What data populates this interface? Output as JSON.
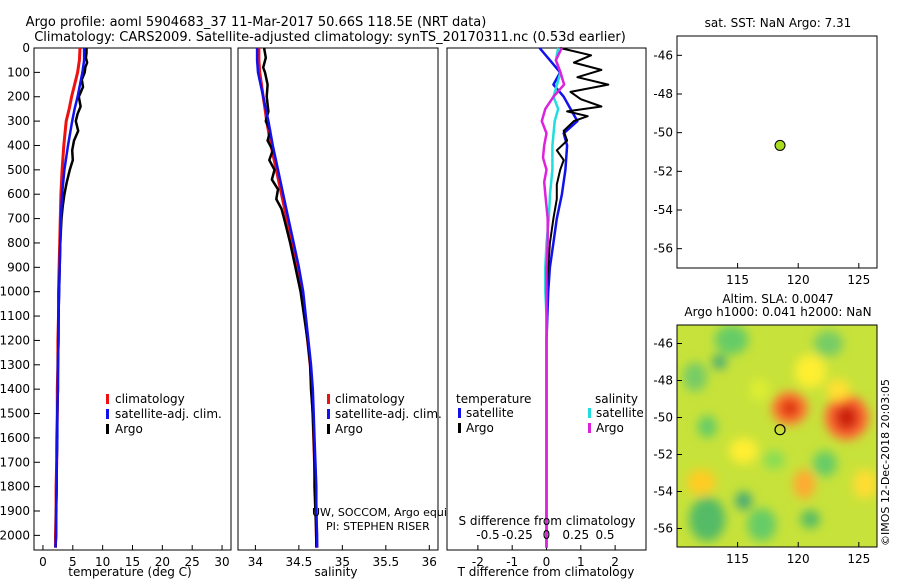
{
  "title": {
    "line1": "Argo profile: aoml 5904683_37 11-Mar-2017 50.66S 118.5E (NRT data)",
    "line2": "Climatology: CARS2009. Satellite-adjusted climatology: synTS_20170311.nc (0.53d earlier)"
  },
  "depth_axis": {
    "ticks": [
      "0",
      "100",
      "200",
      "300",
      "400",
      "500",
      "600",
      "700",
      "800",
      "900",
      "1000",
      "1100",
      "1200",
      "1300",
      "1400",
      "1500",
      "1600",
      "1700",
      "1800",
      "1900",
      "2000"
    ]
  },
  "colors": {
    "climatology": "#ee1111",
    "satellite": "#1111ee",
    "argo": "#000000",
    "sat_salinity": "#22dddd",
    "argo_salinity": "#dd22dd",
    "sst_marker": "#aadd22"
  },
  "legends": {
    "climatology": "climatology",
    "satellite_adj": "satellite-adj. clim.",
    "argo": "Argo",
    "diff_temperature": "temperature",
    "diff_salinity": "salinity",
    "satellite": "satellite"
  },
  "credit": {
    "line1": "UW, SOCCOM, Argo equivalent",
    "line2": "PI: STEPHEN RISER"
  },
  "map_labels": {
    "sst_title": "sat. SST: NaN Argo: 7.31",
    "sla_title1": "Altim. SLA: 0.0047",
    "sla_title2": "Argo h1000: 0.041 h2000: NaN",
    "watermark": "©IMOS 12-Dec-2018 20:03:05"
  },
  "chart_data": [
    {
      "type": "line",
      "xlabel": "temperature (deg C)",
      "ylabel": "",
      "xlim": [
        -1.5,
        31.5
      ],
      "ylim": [
        2060,
        0
      ],
      "xticks": [
        0,
        5,
        10,
        15,
        20,
        25,
        30
      ],
      "xtick_labels": [
        "0",
        "5",
        "10",
        "15",
        "20",
        "25",
        "30"
      ],
      "series": [
        {
          "name": "climatology",
          "depth": [
            0,
            50,
            100,
            150,
            200,
            250,
            300,
            400,
            500,
            600,
            700,
            800,
            900,
            1000,
            1100,
            1200,
            1300,
            1400,
            1500,
            1600,
            1700,
            1800,
            1900,
            2000,
            2050
          ],
          "values": [
            6.2,
            6.1,
            5.8,
            5.3,
            4.8,
            4.4,
            3.9,
            3.5,
            3.2,
            3.0,
            2.9,
            2.8,
            2.7,
            2.6,
            2.6,
            2.5,
            2.5,
            2.4,
            2.4,
            2.3,
            2.3,
            2.2,
            2.2,
            2.1,
            2.1
          ]
        },
        {
          "name": "satellite-adj. clim.",
          "depth": [
            0,
            50,
            100,
            150,
            200,
            250,
            300,
            400,
            500,
            600,
            700,
            800,
            900,
            1000,
            1100,
            1200,
            1300,
            1400,
            1500,
            1600,
            1700,
            1800,
            1900,
            2000,
            2050
          ],
          "values": [
            6.9,
            6.9,
            6.6,
            6.2,
            5.8,
            5.3,
            4.9,
            4.2,
            3.6,
            3.2,
            3.0,
            2.9,
            2.8,
            2.7,
            2.6,
            2.6,
            2.5,
            2.5,
            2.4,
            2.4,
            2.3,
            2.3,
            2.2,
            2.2,
            2.1
          ]
        },
        {
          "name": "Argo",
          "depth": [
            0,
            20,
            40,
            60,
            80,
            100,
            130,
            160,
            200,
            240,
            270,
            300,
            340,
            380,
            420,
            460,
            500,
            550,
            600,
            650,
            700,
            800,
            900,
            1000,
            1100,
            1200,
            1300,
            1400,
            1500,
            1600,
            1700,
            1800,
            1900,
            2000,
            2050
          ],
          "values": [
            7.3,
            7.3,
            7.2,
            7.4,
            7.1,
            7.0,
            6.5,
            6.7,
            6.0,
            6.3,
            5.8,
            5.5,
            5.9,
            5.2,
            4.9,
            5.0,
            4.5,
            4.0,
            3.6,
            3.3,
            3.1,
            2.9,
            2.8,
            2.7,
            2.6,
            2.6,
            2.5,
            2.5,
            2.4,
            2.4,
            2.3,
            2.3,
            2.2,
            2.2,
            2.1
          ]
        }
      ]
    },
    {
      "type": "line",
      "xlabel": "salinity",
      "ylabel": "",
      "xlim": [
        33.8,
        36.1
      ],
      "ylim": [
        2060,
        0
      ],
      "xticks": [
        34,
        34.5,
        35,
        35.5,
        36
      ],
      "xtick_labels": [
        "34",
        "34.5",
        "35",
        "35.5",
        "36"
      ],
      "series": [
        {
          "name": "climatology",
          "depth": [
            0,
            50,
            100,
            150,
            200,
            250,
            300,
            400,
            500,
            600,
            700,
            800,
            900,
            1000,
            1100,
            1200,
            1300,
            1400,
            1500,
            1600,
            1700,
            1800,
            1900,
            2000,
            2050
          ],
          "values": [
            34.04,
            34.04,
            34.05,
            34.07,
            34.09,
            34.11,
            34.13,
            34.18,
            34.24,
            34.3,
            34.36,
            34.42,
            34.48,
            34.53,
            34.57,
            34.6,
            34.63,
            34.65,
            34.66,
            34.67,
            34.68,
            34.69,
            34.7,
            34.7,
            34.71
          ]
        },
        {
          "name": "satellite-adj. clim.",
          "depth": [
            0,
            50,
            100,
            150,
            200,
            250,
            300,
            400,
            500,
            600,
            700,
            800,
            900,
            1000,
            1100,
            1200,
            1300,
            1400,
            1500,
            1600,
            1700,
            1800,
            1900,
            2000,
            2050
          ],
          "values": [
            34.02,
            34.02,
            34.03,
            34.06,
            34.09,
            34.12,
            34.15,
            34.2,
            34.26,
            34.32,
            34.38,
            34.44,
            34.5,
            34.55,
            34.58,
            34.61,
            34.64,
            34.66,
            34.67,
            34.68,
            34.69,
            34.7,
            34.7,
            34.71,
            34.71
          ]
        },
        {
          "name": "Argo",
          "depth": [
            0,
            40,
            80,
            100,
            150,
            200,
            260,
            300,
            340,
            380,
            420,
            460,
            500,
            540,
            580,
            620,
            660,
            700,
            800,
            900,
            1000,
            1100,
            1200,
            1300,
            1400,
            1500,
            1600,
            1700,
            1800,
            1900,
            2000,
            2050
          ],
          "values": [
            34.1,
            34.12,
            34.09,
            34.11,
            34.14,
            34.13,
            34.15,
            34.12,
            34.17,
            34.14,
            34.2,
            34.16,
            34.22,
            34.19,
            34.26,
            34.24,
            34.3,
            34.33,
            34.4,
            34.46,
            34.52,
            34.56,
            34.6,
            34.63,
            34.64,
            34.66,
            34.67,
            34.68,
            34.68,
            34.69,
            34.7,
            34.7
          ]
        }
      ]
    },
    {
      "type": "line",
      "xlabel": "T difference from climatology",
      "ylabel": "",
      "xlim": [
        -2.9,
        2.9
      ],
      "ylim": [
        2060,
        0
      ],
      "xticks": [
        -2,
        -1,
        0,
        1,
        2
      ],
      "xtick_labels": [
        "-2",
        "-1",
        "0",
        "1",
        "2"
      ],
      "secondary_axis": {
        "label": "S difference from climatology",
        "xlim": [
          -0.85,
          0.85
        ],
        "ticks": [
          "-0.5",
          "-0.25",
          "0",
          "0.25",
          "0.5"
        ]
      },
      "series": [
        {
          "name": "temperature satellite",
          "depth": [
            0,
            50,
            100,
            150,
            200,
            250,
            300,
            350,
            400,
            500,
            600,
            700,
            800,
            900,
            1000,
            1200,
            1400,
            1600,
            1800,
            2000,
            2050
          ],
          "values": [
            -0.2,
            0.1,
            0.4,
            0.2,
            0.5,
            0.7,
            0.9,
            0.5,
            0.6,
            0.55,
            0.45,
            0.3,
            0.2,
            0.1,
            0.05,
            0.0,
            0.0,
            0.0,
            0.0,
            0.0,
            0.0
          ]
        },
        {
          "name": "temperature Argo",
          "depth": [
            0,
            30,
            60,
            90,
            120,
            150,
            180,
            210,
            240,
            260,
            280,
            300,
            340,
            380,
            420,
            460,
            500,
            560,
            620,
            700,
            800,
            900,
            1000,
            1200,
            1400,
            1600,
            1800,
            2000,
            2050
          ],
          "values": [
            0.4,
            1.3,
            0.8,
            1.6,
            0.9,
            1.8,
            0.7,
            1.0,
            1.6,
            0.6,
            1.2,
            0.8,
            0.5,
            0.6,
            0.3,
            0.5,
            0.4,
            0.3,
            0.3,
            0.2,
            0.1,
            0.05,
            0.0,
            0.0,
            0.0,
            0.0,
            0.0,
            0.0,
            0.0
          ]
        },
        {
          "name": "salinity satellite",
          "depth": [
            0,
            50,
            100,
            150,
            200,
            250,
            300,
            400,
            500,
            600,
            700,
            800,
            900,
            1000,
            1100,
            1200,
            1400,
            1600,
            1800,
            2000,
            2050
          ],
          "values": [
            0.1,
            0.08,
            0.12,
            0.09,
            0.06,
            0.1,
            0.07,
            0.05,
            0.05,
            0.03,
            0.02,
            0.0,
            -0.01,
            -0.01,
            0.0,
            0.0,
            0.0,
            0.0,
            0.0,
            0.0,
            0.0
          ]
        },
        {
          "name": "salinity Argo",
          "depth": [
            0,
            50,
            100,
            150,
            200,
            250,
            300,
            350,
            400,
            450,
            500,
            550,
            600,
            650,
            700,
            800,
            900,
            1000,
            1100,
            1200,
            1400,
            1600,
            1800,
            2000,
            2050
          ],
          "values": [
            0.13,
            0.08,
            0.12,
            0.15,
            0.06,
            -0.01,
            -0.04,
            0.0,
            -0.02,
            -0.03,
            0.0,
            -0.02,
            -0.01,
            0.0,
            0.01,
            0.01,
            0.0,
            0.0,
            0.0,
            0.0,
            0.0,
            0.0,
            0.0,
            0.0,
            0.0
          ]
        }
      ]
    },
    {
      "type": "scatter",
      "title": "sat. SST: NaN Argo: 7.31",
      "xlim": [
        110,
        126.5
      ],
      "ylim": [
        -57,
        -45
      ],
      "xticks": [
        "115",
        "120",
        "125"
      ],
      "yticks": [
        "-46",
        "-48",
        "-50",
        "-52",
        "-54",
        "-56"
      ],
      "points": [
        {
          "x": 118.5,
          "y": -50.66
        }
      ]
    },
    {
      "type": "heatmap",
      "title": "Altim. SLA: 0.0047 / Argo h1000: 0.041 h2000: NaN",
      "xlim": [
        110,
        126.5
      ],
      "ylim": [
        -57,
        -45
      ],
      "xticks": [
        "115",
        "120",
        "125"
      ],
      "yticks": [
        "-46",
        "-48",
        "-50",
        "-52",
        "-54",
        "-56"
      ],
      "marker": {
        "x": 118.5,
        "y": -50.66
      },
      "blobs": [
        {
          "x": 119.3,
          "y": -49.5,
          "rx": 1.5,
          "ry": 0.9,
          "color": "#ff7733"
        },
        {
          "x": 119.3,
          "y": -49.5,
          "rx": 0.8,
          "ry": 0.5,
          "color": "#dd3311"
        },
        {
          "x": 124.0,
          "y": -50.0,
          "rx": 1.8,
          "ry": 1.2,
          "color": "#ff6633"
        },
        {
          "x": 124.0,
          "y": -50.0,
          "rx": 1.0,
          "ry": 0.7,
          "color": "#cc2211"
        },
        {
          "x": 120.5,
          "y": -53.6,
          "rx": 0.9,
          "ry": 0.8,
          "color": "#ffaa33"
        },
        {
          "x": 112.0,
          "y": -53.5,
          "rx": 1.2,
          "ry": 0.7,
          "color": "#ffcc22"
        },
        {
          "x": 114.5,
          "y": -45.8,
          "rx": 1.4,
          "ry": 0.8,
          "color": "#66cc66"
        },
        {
          "x": 112.5,
          "y": -55.5,
          "rx": 1.5,
          "ry": 1.2,
          "color": "#55bb66"
        },
        {
          "x": 117.0,
          "y": -55.8,
          "rx": 1.2,
          "ry": 0.9,
          "color": "#66cc66"
        },
        {
          "x": 122.2,
          "y": -52.5,
          "rx": 1.0,
          "ry": 0.7,
          "color": "#66cc66"
        },
        {
          "x": 121.0,
          "y": -47.5,
          "rx": 1.3,
          "ry": 0.9,
          "color": "#ffee33"
        },
        {
          "x": 115.5,
          "y": -51.8,
          "rx": 1.2,
          "ry": 0.7,
          "color": "#ffee33"
        },
        {
          "x": 111.5,
          "y": -47.8,
          "rx": 1.0,
          "ry": 0.8,
          "color": "#77cc66"
        },
        {
          "x": 122.5,
          "y": -46.0,
          "rx": 1.2,
          "ry": 0.7,
          "color": "#77cc66"
        },
        {
          "x": 116.8,
          "y": -48.5,
          "rx": 0.8,
          "ry": 0.6,
          "color": "#ddee33"
        },
        {
          "x": 125.5,
          "y": -53.6,
          "rx": 1.0,
          "ry": 0.8,
          "color": "#ffdd33"
        },
        {
          "x": 118.0,
          "y": -52.3,
          "rx": 0.9,
          "ry": 0.5,
          "color": "#88dd55"
        },
        {
          "x": 112.5,
          "y": -50.5,
          "rx": 0.8,
          "ry": 0.6,
          "color": "#66cc66"
        },
        {
          "x": 123.3,
          "y": -48.5,
          "rx": 1.0,
          "ry": 0.6,
          "color": "#ffe033"
        },
        {
          "x": 113.5,
          "y": -47.0,
          "rx": 0.6,
          "ry": 0.4,
          "color": "#44aa77"
        },
        {
          "x": 115.5,
          "y": -54.5,
          "rx": 0.7,
          "ry": 0.5,
          "color": "#44aa77"
        },
        {
          "x": 121.0,
          "y": -55.5,
          "rx": 0.8,
          "ry": 0.5,
          "color": "#55bb66"
        }
      ]
    }
  ]
}
